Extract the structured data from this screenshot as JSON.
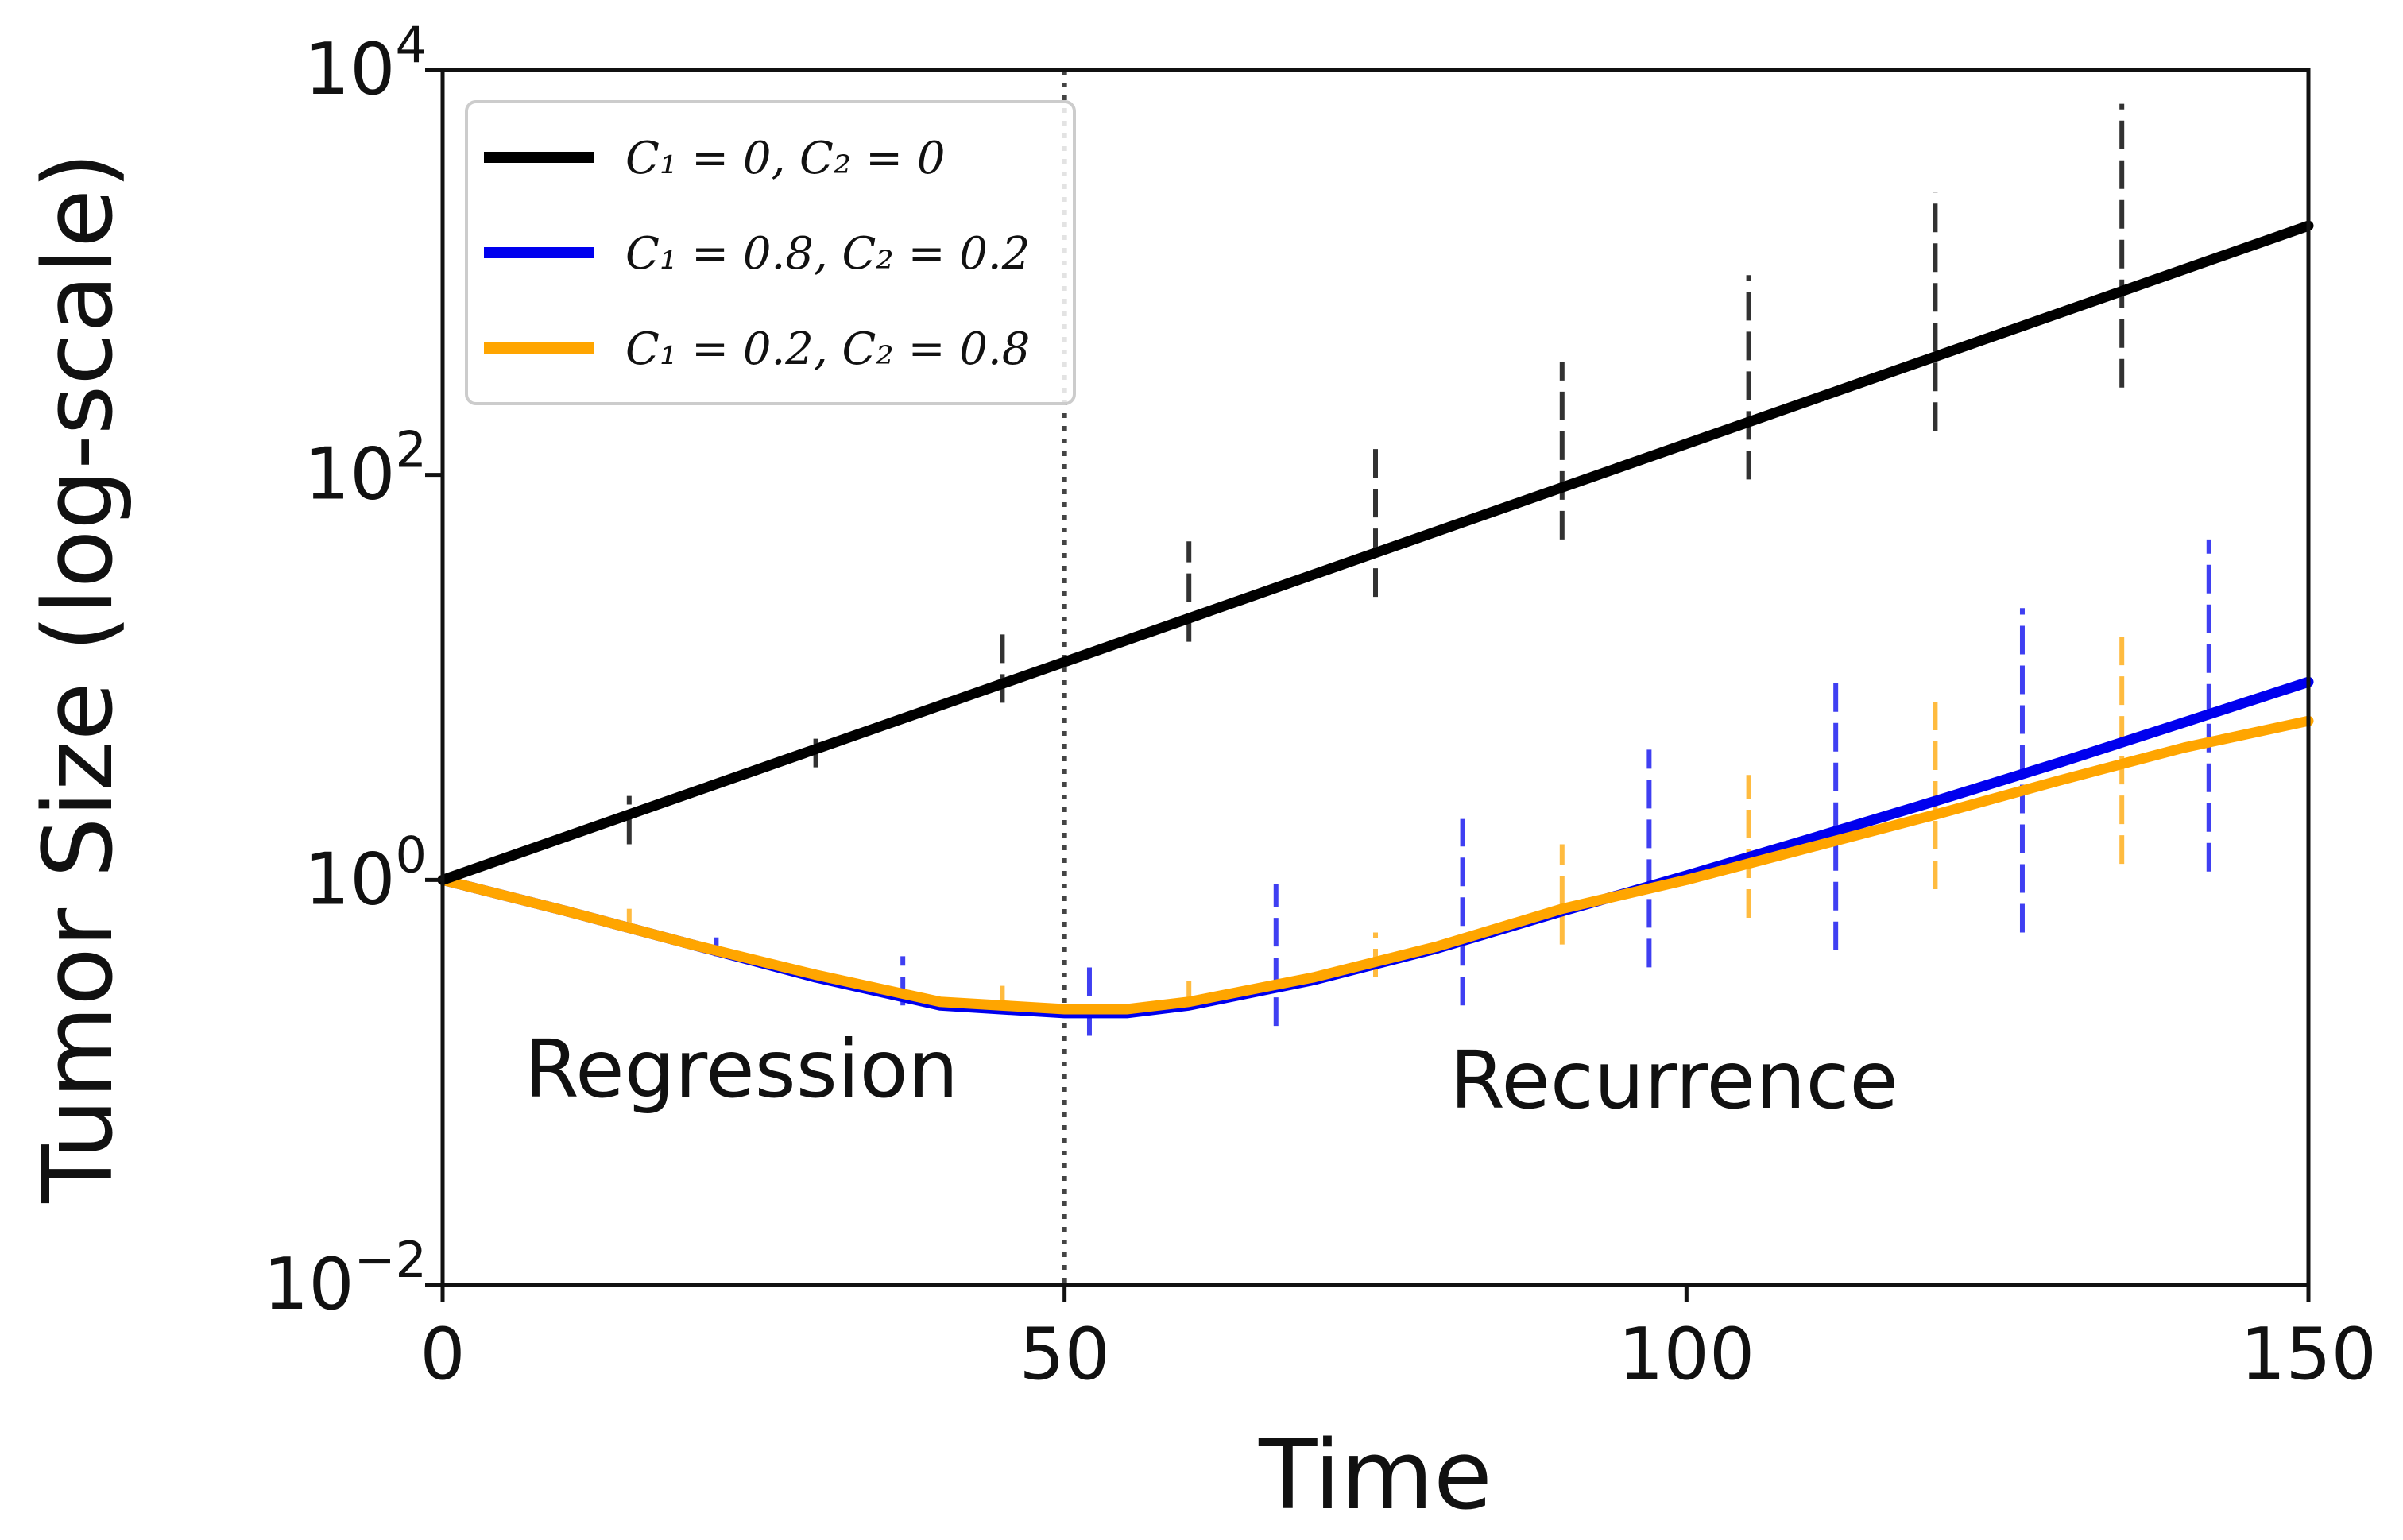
{
  "chart_data": {
    "type": "line",
    "xlabel": "Time",
    "ylabel": "Tumor Size (log-scale)",
    "xlim": [
      0,
      150
    ],
    "ylim": [
      0.01,
      10000
    ],
    "yscale": "log",
    "xticks": [
      "0",
      "50",
      "100",
      "150"
    ],
    "yticks": [
      {
        "base": "10",
        "exp": "−2"
      },
      {
        "base": "10",
        "exp": "0"
      },
      {
        "base": "10",
        "exp": "2"
      },
      {
        "base": "10",
        "exp": "4"
      }
    ],
    "grid": false,
    "legend_position": "top-left",
    "vline_x": 50,
    "annotations": [
      {
        "text": "Regression",
        "x": 24,
        "y": 0.085
      },
      {
        "text": "Recurrence",
        "x": 99,
        "y": 0.075
      }
    ],
    "series": [
      {
        "name": "C₁ = 0, C₂ = 0",
        "color": "#000000",
        "x": [
          0,
          150
        ],
        "y": [
          1.0,
          1700
        ],
        "errorbars": [
          {
            "x": 15,
            "lo": 1.5,
            "hi": 2.6
          },
          {
            "x": 30,
            "lo": 3.6,
            "hi": 5.5
          },
          {
            "x": 45,
            "lo": 7.5,
            "hi": 17
          },
          {
            "x": 60,
            "lo": 15,
            "hi": 47
          },
          {
            "x": 75,
            "lo": 25,
            "hi": 140
          },
          {
            "x": 90,
            "lo": 48,
            "hi": 360
          },
          {
            "x": 105,
            "lo": 95,
            "hi": 970
          },
          {
            "x": 120,
            "lo": 165,
            "hi": 2500
          },
          {
            "x": 135,
            "lo": 270,
            "hi": 6800
          }
        ]
      },
      {
        "name": "C₁ = 0.8, C₂ = 0.2",
        "color": "#0000ee",
        "x": [
          0,
          10,
          20,
          30,
          40,
          50,
          55,
          60,
          70,
          80,
          90,
          100,
          110,
          120,
          130,
          140,
          150
        ],
        "y": [
          1.0,
          0.7,
          0.48,
          0.33,
          0.24,
          0.22,
          0.22,
          0.24,
          0.32,
          0.46,
          0.7,
          1.05,
          1.6,
          2.45,
          3.8,
          6.0,
          9.5
        ],
        "errorbars": [
          {
            "x": 22,
            "lo": 0.42,
            "hi": 0.52
          },
          {
            "x": 37,
            "lo": 0.24,
            "hi": 0.42
          },
          {
            "x": 52,
            "lo": 0.17,
            "hi": 0.38
          },
          {
            "x": 67,
            "lo": 0.19,
            "hi": 0.95
          },
          {
            "x": 82,
            "lo": 0.24,
            "hi": 2.0
          },
          {
            "x": 97,
            "lo": 0.37,
            "hi": 4.4
          },
          {
            "x": 112,
            "lo": 0.45,
            "hi": 10.5
          },
          {
            "x": 127,
            "lo": 0.55,
            "hi": 22
          },
          {
            "x": 142,
            "lo": 1.1,
            "hi": 48
          }
        ]
      },
      {
        "name": "C₁ = 0.2, C₂ = 0.8",
        "color": "#ffa500",
        "x": [
          0,
          10,
          20,
          30,
          40,
          50,
          55,
          60,
          70,
          80,
          90,
          100,
          110,
          120,
          130,
          140,
          150
        ],
        "y": [
          1.0,
          0.7,
          0.48,
          0.34,
          0.25,
          0.23,
          0.23,
          0.25,
          0.33,
          0.47,
          0.72,
          1.0,
          1.45,
          2.1,
          3.1,
          4.5,
          6.1
        ],
        "errorbars": [
          {
            "x": 15,
            "lo": 0.58,
            "hi": 0.72
          },
          {
            "x": 45,
            "lo": 0.23,
            "hi": 0.3
          },
          {
            "x": 60,
            "lo": 0.23,
            "hi": 0.32
          },
          {
            "x": 75,
            "lo": 0.33,
            "hi": 0.55
          },
          {
            "x": 90,
            "lo": 0.48,
            "hi": 1.5
          },
          {
            "x": 105,
            "lo": 0.65,
            "hi": 3.3
          },
          {
            "x": 120,
            "lo": 0.9,
            "hi": 8.5
          },
          {
            "x": 135,
            "lo": 1.2,
            "hi": 18
          }
        ]
      }
    ]
  }
}
